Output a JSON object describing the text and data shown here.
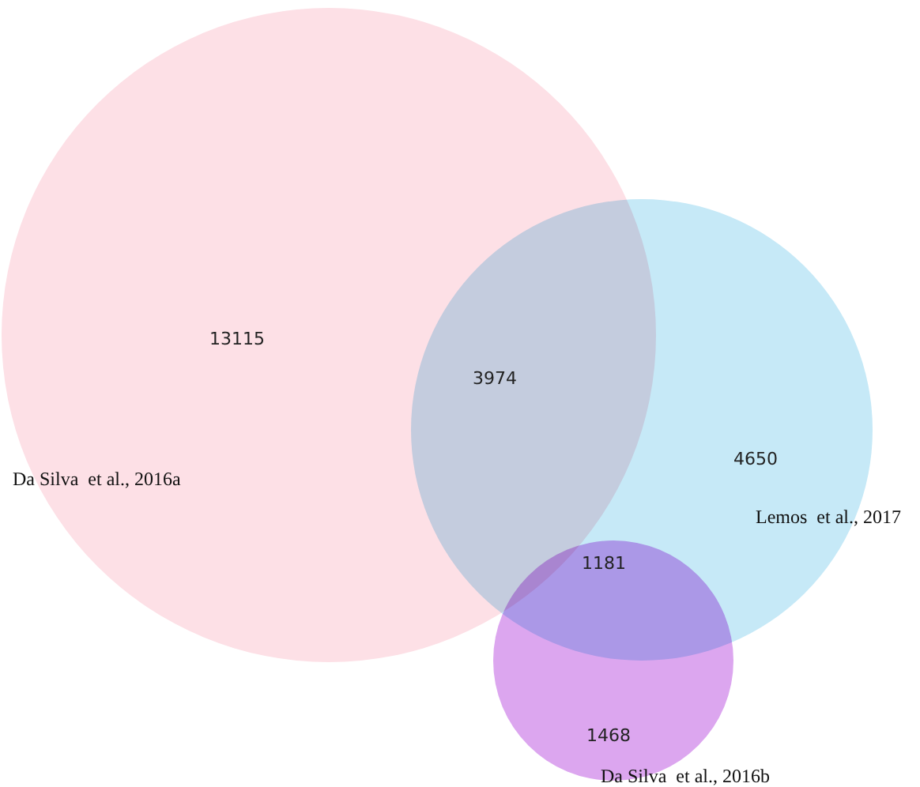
{
  "chart_data": {
    "type": "other",
    "categories": [
      "Da Silva  et al., 2016a",
      "Lemos  et al., 2017",
      "Da Silva  et al., 2016b"
    ],
    "colors": [
      "#fde0e6",
      "#c6e9f7",
      "#dca6ef"
    ],
    "values": [
      13115,
      4650,
      1468
    ],
    "data_labels": true,
    "annotations": [
      "3974",
      "1181"
    ]
  }
}
